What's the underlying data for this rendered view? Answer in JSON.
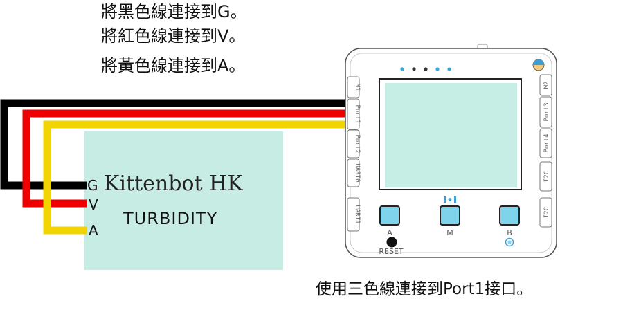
{
  "instructions": [
    "將黑色線連接到G。",
    "將紅色線連接到V。",
    "將黃色線連接到A。"
  ],
  "caption": "使用三色線連接到Port1接口。",
  "sensor": {
    "brand": "Kittenbot HK",
    "name": "TURBIDITY",
    "pins": [
      "G",
      "V",
      "A"
    ]
  },
  "board": {
    "left_ports": [
      "M1",
      "Port1",
      "Port2",
      "UART0",
      "UART1"
    ],
    "right_ports": [
      "M2",
      "Port3",
      "Port4",
      "I2C",
      "I2C"
    ],
    "buttons": [
      "A",
      "M",
      "B"
    ],
    "reset_label": "RESET"
  },
  "colors": {
    "wire_ground": "#000000",
    "wire_vcc": "#ee0000",
    "wire_analog": "#f2d500",
    "sensor_board": "#c6ece4",
    "button": "#7fd3ea"
  }
}
